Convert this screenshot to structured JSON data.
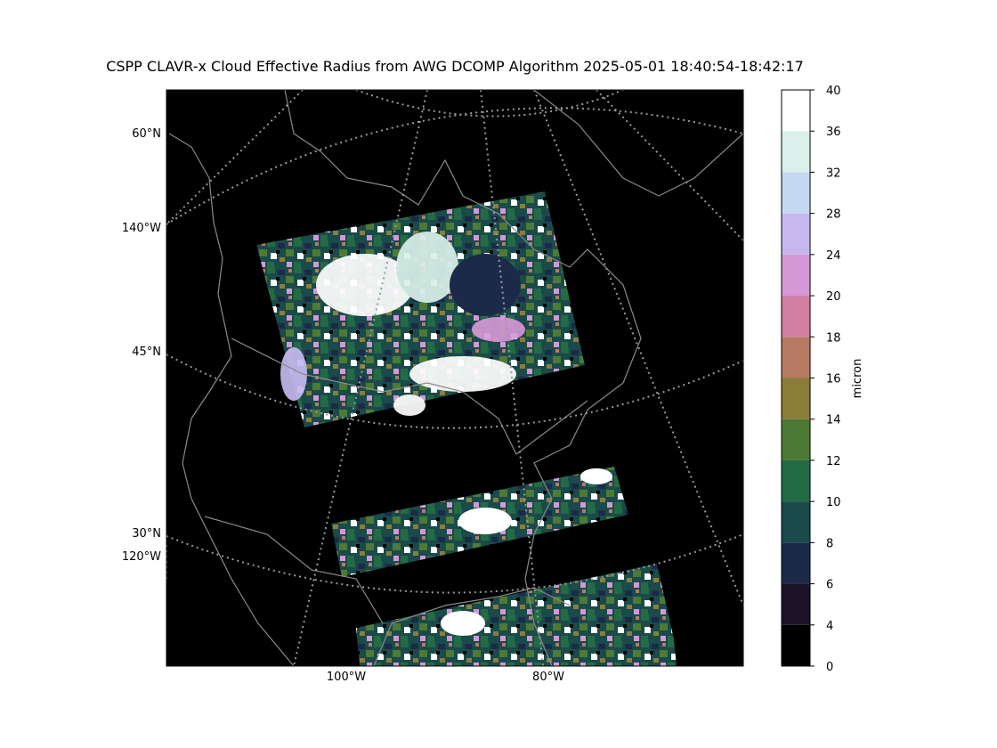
{
  "title": "CSPP CLAVR-x Cloud Effective Radius from AWG DCOMP Algorithm 2025-05-01 18:40:54-18:42:17",
  "map": {
    "lat_labels": [
      "60°N",
      "140°W",
      "45°N",
      "30°N",
      "120°W"
    ],
    "lon_labels": [
      "100°W",
      "80°W"
    ]
  },
  "colorbar": {
    "label": "micron",
    "boundaries": [
      0,
      4,
      6,
      8,
      10,
      12,
      14,
      16,
      18,
      20,
      24,
      28,
      32,
      36,
      40
    ],
    "colors": [
      "#000000",
      "#1d1228",
      "#1c2a4a",
      "#1a4a4a",
      "#226b45",
      "#4d7a34",
      "#8a7d3a",
      "#b87a64",
      "#d17fa0",
      "#d498d6",
      "#c6b8ef",
      "#c5d8f2",
      "#daf0ea",
      "#ffffff"
    ]
  }
}
